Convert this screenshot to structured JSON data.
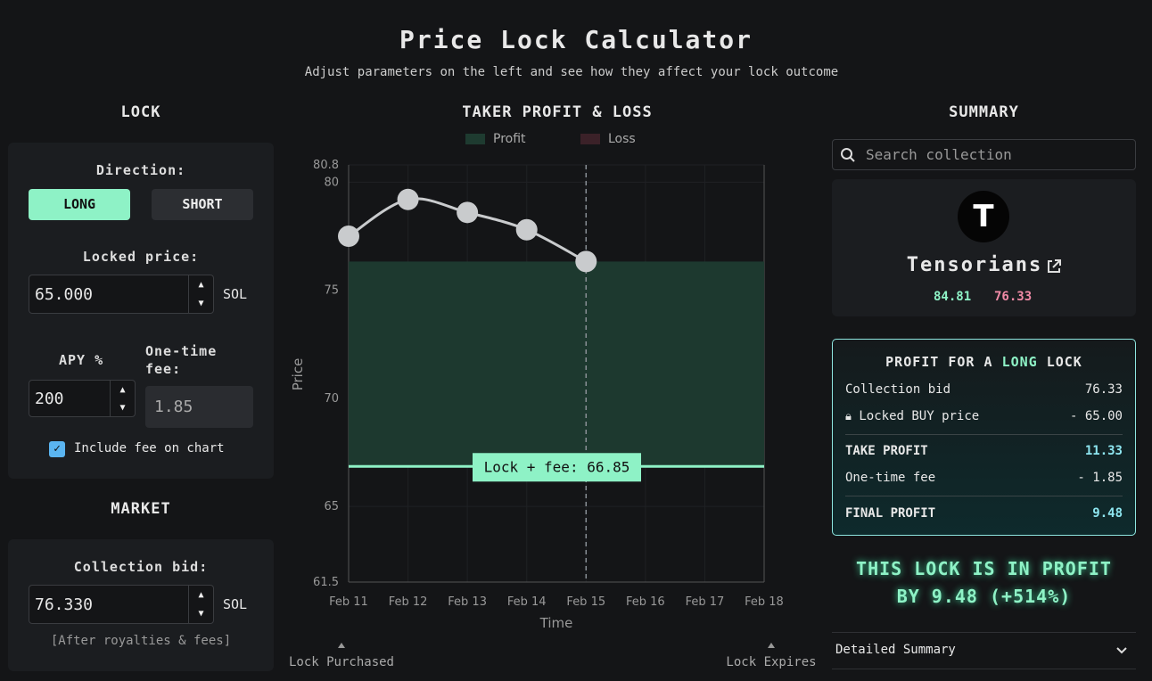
{
  "header": {
    "title": "Price Lock Calculator",
    "subtitle": "Adjust parameters on the left and see how they affect your lock outcome"
  },
  "lock": {
    "heading": "LOCK",
    "direction_label": "Direction:",
    "buttons": [
      "LONG",
      "SHORT"
    ],
    "locked_price_label": "Locked price:",
    "locked_price": "65.000",
    "unit": "SOL",
    "apy_label": "APY %",
    "apy": "200",
    "fee_label": "One-time fee:",
    "fee": "1.85",
    "include_fee": "Include fee on chart"
  },
  "market": {
    "heading": "MARKET",
    "bid_label": "Collection bid:",
    "bid": "76.330",
    "unit": "SOL",
    "note": "[After royalties & fees]"
  },
  "chart": {
    "type": "line",
    "heading": "TAKER PROFIT & LOSS",
    "legend": [
      {
        "name": "Profit",
        "color": "#1e3b30"
      },
      {
        "name": "Loss",
        "color": "#3b2128"
      }
    ],
    "ylabel": "Price",
    "xlabel": "Time",
    "categories": [
      "Feb 11",
      "Feb 12",
      "Feb 13",
      "Feb 14",
      "Feb 15",
      "Feb 16",
      "Feb 17",
      "Feb 18"
    ],
    "values": [
      77.5,
      79.2,
      78.6,
      77.8,
      76.33,
      null,
      null,
      null
    ],
    "color": "#c9cbcd",
    "ylim": [
      61.5,
      80.8
    ],
    "yticks": [
      61.5,
      65,
      70,
      75,
      80,
      80.8
    ],
    "grid": true,
    "lock_line": {
      "value": 66.85,
      "label": "Lock + fee: 66.85",
      "color": "#8ef2c6"
    },
    "markers": [
      "Lock Purchased",
      "Lock Expires"
    ]
  },
  "summary": {
    "heading": "SUMMARY",
    "search_placeholder": "Search collection",
    "collection": {
      "avatar": "T",
      "name": "Tensorians",
      "prices": [
        "84.81",
        "76.33"
      ]
    },
    "profit_box": {
      "title": [
        "PROFIT FOR A",
        "LONG",
        "LOCK"
      ],
      "rows": [
        [
          "Collection bid",
          "76.33"
        ],
        [
          "Locked BUY price",
          "- 65.00"
        ],
        [
          "TAKE PROFIT",
          "11.33"
        ],
        [
          "One-time fee",
          "- 1.85"
        ],
        [
          "FINAL PROFIT",
          "9.48"
        ]
      ]
    },
    "result": [
      "THIS LOCK IS IN PROFIT",
      "BY 9.48 (+514%)"
    ],
    "details": "Detailed Summary"
  }
}
